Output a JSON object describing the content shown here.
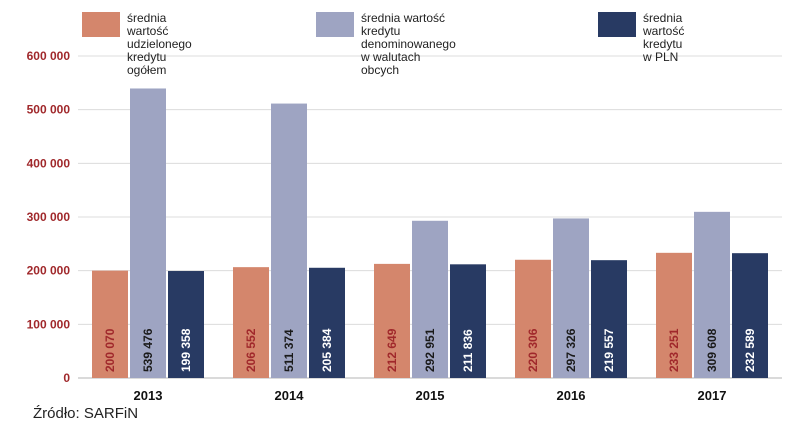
{
  "chart_data": {
    "type": "bar",
    "categories": [
      "2013",
      "2014",
      "2015",
      "2016",
      "2017"
    ],
    "series": [
      {
        "name": "średnia wartość\nudzielonego kredytu ogółem",
        "color": "#d4866c",
        "label_color": "#a0282b",
        "values": [
          200070,
          206552,
          212649,
          220306,
          233251
        ],
        "labels": [
          "200 070",
          "206 552",
          "212 649",
          "220 306",
          "233 251"
        ]
      },
      {
        "name": "średnia wartość kredytu\ndenominowanego w walutach obcych",
        "color": "#9ea4c2",
        "label_color": "#1a1a1a",
        "values": [
          539476,
          511374,
          292951,
          297326,
          309608
        ],
        "labels": [
          "539 476",
          "511 374",
          "292 951",
          "297 326",
          "309 608"
        ]
      },
      {
        "name": "średnia wartość\nkredytu w PLN",
        "color": "#283a63",
        "label_color": "#ffffff",
        "values": [
          199358,
          205384,
          211836,
          219557,
          232589
        ],
        "labels": [
          "199 358",
          "205 384",
          "211 836",
          "219 557",
          "232 589"
        ]
      }
    ],
    "ylim": [
      0,
      600000
    ],
    "yticks": [
      0,
      100000,
      200000,
      300000,
      400000,
      500000,
      600000
    ],
    "ytick_labels": [
      "0",
      "100 000",
      "200 000",
      "300 000",
      "400 000",
      "500 000",
      "600 000"
    ],
    "grid": true,
    "legend_position": "top"
  },
  "source": "Źródło: SARFiN"
}
